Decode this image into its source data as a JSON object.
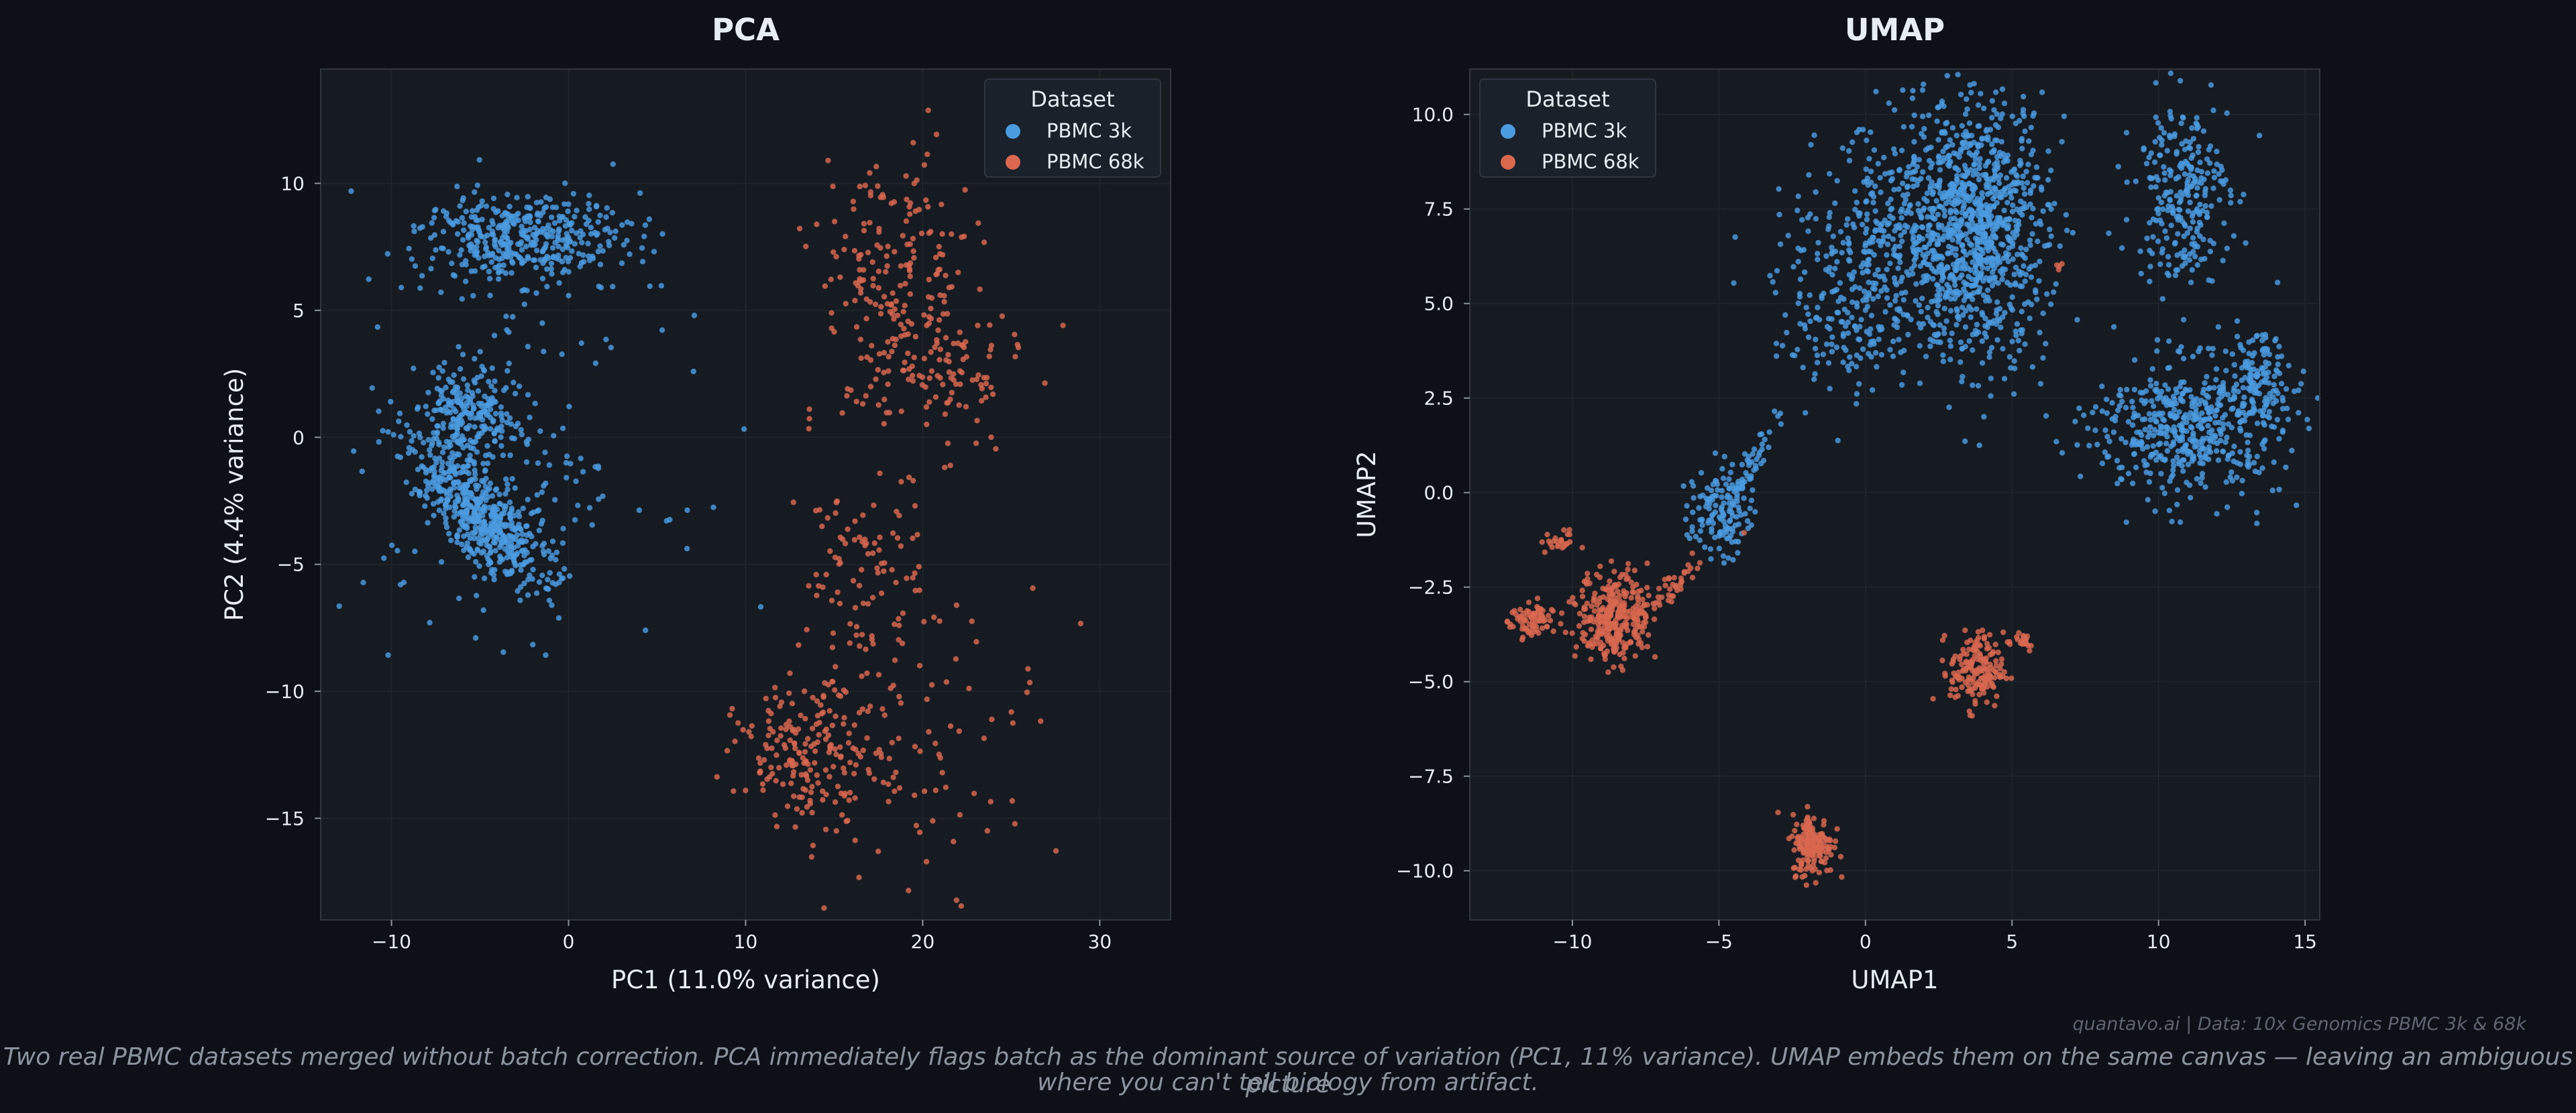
{
  "theme": {
    "background": "#0d1117",
    "plot_background": "#161b22",
    "text": "#e6edf3",
    "muted_text": "#8b949e",
    "grid": "#21262d",
    "frame": "#30363d"
  },
  "chart_data": [
    {
      "type": "scatter",
      "title": "PCA",
      "xlabel": "PC1 (11.0% variance)",
      "ylabel": "PC2 (4.4% variance)",
      "xlim": [
        -14,
        34
      ],
      "ylim": [
        -19,
        14.5
      ],
      "xticks": [
        -10,
        0,
        10,
        20,
        30
      ],
      "yticks": [
        -15,
        -10,
        -5,
        0,
        5,
        10
      ],
      "grid": true,
      "legend": {
        "title": "Dataset",
        "placement": "upper right"
      },
      "series": [
        {
          "name": "PBMC 3k",
          "color": "#4a9be0",
          "clusters": [
            {
              "center": [
                -2.5,
                7.8
              ],
              "spread": [
                3.0,
                0.9
              ],
              "rotation": 0,
              "n": 420
            },
            {
              "center": [
                -5.5,
                1.0
              ],
              "spread": [
                1.6,
                0.9
              ],
              "rotation": 0,
              "n": 220
            },
            {
              "center": [
                -5.0,
                -3.0
              ],
              "spread": [
                2.3,
                0.85
              ],
              "rotation": -35,
              "n": 520
            },
            {
              "center": [
                -3.5,
                -1.5
              ],
              "spread": [
                4.5,
                3.0
              ],
              "rotation": 0,
              "n": 140
            }
          ]
        },
        {
          "name": "PBMC 68k",
          "color": "#d9684f",
          "clusters": [
            {
              "center": [
                18.5,
                6.5
              ],
              "spread": [
                2.2,
                2.3
              ],
              "rotation": 0,
              "n": 170
            },
            {
              "center": [
                20.5,
                2.5
              ],
              "spread": [
                2.5,
                1.5
              ],
              "rotation": 0,
              "n": 120
            },
            {
              "center": [
                16.5,
                -5.0
              ],
              "spread": [
                1.8,
                1.8
              ],
              "rotation": 0,
              "n": 80
            },
            {
              "center": [
                13.5,
                -12.5
              ],
              "spread": [
                2.0,
                1.3
              ],
              "rotation": 0,
              "n": 180
            },
            {
              "center": [
                19.5,
                -11.5
              ],
              "spread": [
                3.8,
                3.0
              ],
              "rotation": 0,
              "n": 110
            }
          ]
        }
      ]
    },
    {
      "type": "scatter",
      "title": "UMAP",
      "xlabel": "UMAP1",
      "ylabel": "UMAP2",
      "xlim": [
        -13.5,
        15.5
      ],
      "ylim": [
        -11.3,
        11.2
      ],
      "xticks": [
        -10,
        -5,
        0,
        5,
        10,
        15
      ],
      "yticks": [
        -10.0,
        -7.5,
        -5.0,
        -2.5,
        0.0,
        2.5,
        5.0,
        7.5,
        10.0
      ],
      "grid": true,
      "legend": {
        "title": "Dataset",
        "placement": "upper left"
      },
      "series": [
        {
          "name": "PBMC 3k",
          "color": "#4a9be0",
          "clusters": [
            {
              "center": [
                3.8,
                7.0
              ],
              "spread": [
                1.2,
                1.7
              ],
              "rotation": 0,
              "n": 900
            },
            {
              "center": [
                1.5,
                6.8
              ],
              "spread": [
                1.5,
                1.6
              ],
              "rotation": 0,
              "n": 300
            },
            {
              "center": [
                -0.5,
                5.2
              ],
              "spread": [
                1.3,
                1.3
              ],
              "rotation": 0,
              "n": 220
            },
            {
              "center": [
                10.8,
                8.0
              ],
              "spread": [
                0.8,
                1.2
              ],
              "rotation": 0,
              "n": 260
            },
            {
              "center": [
                11.0,
                1.7
              ],
              "spread": [
                1.6,
                0.9
              ],
              "rotation": 0,
              "n": 500
            },
            {
              "center": [
                13.3,
                3.0
              ],
              "spread": [
                0.6,
                0.6
              ],
              "rotation": 0,
              "n": 120
            },
            {
              "center": [
                -5.0,
                -0.5
              ],
              "spread": [
                0.5,
                0.6
              ],
              "rotation": 0,
              "n": 130
            },
            {
              "center": [
                -3.8,
                0.9
              ],
              "spread": [
                0.8,
                0.17
              ],
              "rotation": 55,
              "n": 50
            }
          ]
        },
        {
          "name": "PBMC 68k",
          "color": "#d9684f",
          "clusters": [
            {
              "center": [
                -8.6,
                -3.3
              ],
              "spread": [
                0.6,
                0.6
              ],
              "rotation": 0,
              "n": 300
            },
            {
              "center": [
                -7.0,
                -2.8
              ],
              "spread": [
                1.1,
                0.16
              ],
              "rotation": 35,
              "n": 60
            },
            {
              "center": [
                -11.4,
                -3.4
              ],
              "spread": [
                0.35,
                0.25
              ],
              "rotation": 0,
              "n": 80
            },
            {
              "center": [
                -10.5,
                -1.3
              ],
              "spread": [
                0.3,
                0.15
              ],
              "rotation": 0,
              "n": 25
            },
            {
              "center": [
                3.8,
                -4.7
              ],
              "spread": [
                0.45,
                0.5
              ],
              "rotation": 0,
              "n": 170
            },
            {
              "center": [
                5.2,
                -3.9
              ],
              "spread": [
                0.35,
                0.15
              ],
              "rotation": 0,
              "n": 20
            },
            {
              "center": [
                -1.8,
                -9.3
              ],
              "spread": [
                0.35,
                0.4
              ],
              "rotation": 0,
              "n": 170
            },
            {
              "center": [
                6.6,
                6.0
              ],
              "spread": [
                0.08,
                0.08
              ],
              "rotation": 0,
              "n": 4
            }
          ]
        }
      ]
    }
  ],
  "footer": {
    "credit": "quantavo.ai  |  Data: 10x Genomics PBMC 3k & 68k",
    "caption_line1": "Two real PBMC datasets merged without batch correction. PCA immediately flags batch as the dominant source of variation (PC1, 11% variance). UMAP embeds them on the same canvas — leaving an ambiguous picture",
    "caption_line2": "where you can't tell biology from artifact."
  }
}
